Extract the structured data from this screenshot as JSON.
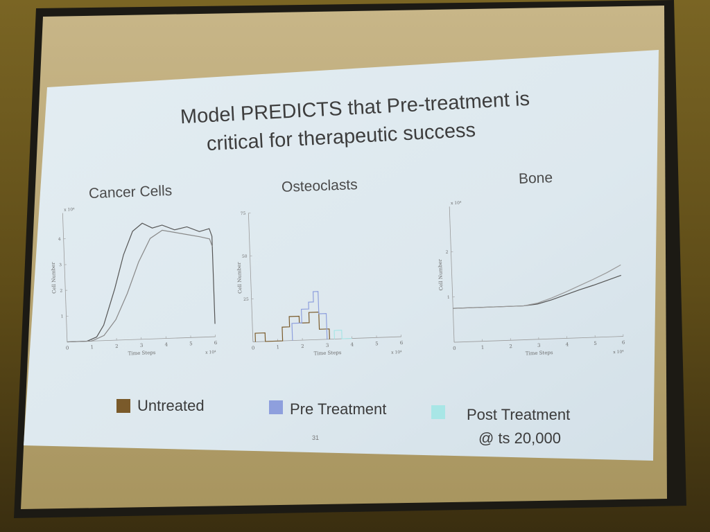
{
  "slide": {
    "title_line1": "Model PREDICTS that Pre-treatment is",
    "title_line2": "critical for therapeutic success",
    "page_number": "31"
  },
  "legend": {
    "untreated": "Untreated",
    "pre_treatment": "Pre Treatment",
    "post_treatment_line1": "Post Treatment",
    "post_treatment_line2": "@ ts 20,000"
  },
  "colors": {
    "untreated": "#7a5a2a",
    "pre_treatment": "#8e9fdd",
    "post_treatment": "#a8e6e6",
    "slide_bg": "#dfeaf0",
    "curve": "#555555"
  },
  "chart_data": [
    {
      "type": "line",
      "title": "Cancer Cells",
      "xlabel": "Time Steps",
      "ylabel": "Cell Number",
      "x_ticks": [
        "0",
        "1",
        "2",
        "3",
        "4",
        "5",
        "6"
      ],
      "y_ticks": [
        "1",
        "2",
        "3",
        "4"
      ],
      "x_multiplier": "x 10⁴",
      "y_multiplier": "x 10⁴",
      "xlim": [
        0,
        6
      ],
      "ylim": [
        0,
        5
      ],
      "grid": false,
      "series": [
        {
          "color": "#555555",
          "x": [
            0,
            0.8,
            1.2,
            1.5,
            2.0,
            2.4,
            2.8,
            3.2,
            3.6,
            4.0,
            4.5,
            5.0,
            5.5,
            5.9,
            6.0,
            6.0
          ],
          "y": [
            0,
            0,
            0.15,
            0.6,
            2.0,
            3.3,
            4.2,
            4.5,
            4.3,
            4.4,
            4.2,
            4.3,
            4.1,
            4.2,
            3.9,
            0.5
          ]
        },
        {
          "color": "#888888",
          "x": [
            0,
            1.0,
            1.5,
            2.0,
            2.5,
            3.0,
            3.5,
            4.0,
            4.5,
            5.0,
            5.5,
            5.9,
            6.0
          ],
          "y": [
            0,
            0,
            0.2,
            0.8,
            1.8,
            3.0,
            3.9,
            4.2,
            4.1,
            4.0,
            3.9,
            3.8,
            3.5
          ]
        }
      ]
    },
    {
      "type": "line",
      "title": "Osteoclasts",
      "xlabel": "Time Steps",
      "ylabel": "Cell Number",
      "x_ticks": [
        "0",
        "1",
        "2",
        "3",
        "4",
        "5",
        "6"
      ],
      "y_ticks": [
        "25",
        "50",
        "75"
      ],
      "x_multiplier": "x 10⁴",
      "xlim": [
        0,
        6
      ],
      "ylim": [
        0,
        75
      ],
      "grid": false,
      "series": [
        {
          "color": "#7a5a2a",
          "x": [
            0.1,
            0.1,
            0.5,
            0.5,
            1.2,
            1.2,
            1.5,
            1.5,
            1.9,
            1.9,
            2.3,
            2.3,
            2.7,
            2.7,
            3.1,
            3.1
          ],
          "y": [
            0,
            5,
            5,
            0,
            0,
            8,
            8,
            14,
            14,
            10,
            10,
            16,
            16,
            6,
            6,
            0
          ]
        },
        {
          "color": "#8e9fdd",
          "x": [
            1.6,
            1.6,
            2.0,
            2.0,
            2.3,
            2.3,
            2.5,
            2.5,
            2.7,
            2.7,
            3.0,
            3.0
          ],
          "y": [
            0,
            10,
            10,
            18,
            18,
            22,
            22,
            28,
            28,
            15,
            15,
            0
          ]
        },
        {
          "color": "#a8e6e6",
          "x": [
            3.3,
            3.3,
            3.6,
            3.6,
            4.0,
            4.0
          ],
          "y": [
            0,
            5,
            5,
            0,
            0,
            0
          ]
        }
      ]
    },
    {
      "type": "line",
      "title": "Bone",
      "xlabel": "Time Steps",
      "ylabel": "Cell Number",
      "x_ticks": [
        "0",
        "1",
        "2",
        "3",
        "4",
        "5",
        "6"
      ],
      "y_ticks": [
        "1",
        "2"
      ],
      "x_multiplier": "x 10⁴",
      "y_multiplier": "x 10⁴",
      "xlim": [
        0,
        6
      ],
      "ylim": [
        0,
        3
      ],
      "grid": false,
      "series": [
        {
          "color": "#555555",
          "x": [
            0,
            2.5,
            3.0,
            3.5,
            4.0,
            4.5,
            5.0,
            5.5,
            6.0
          ],
          "y": [
            0.75,
            0.75,
            0.78,
            0.86,
            0.96,
            1.06,
            1.15,
            1.25,
            1.35
          ]
        },
        {
          "color": "#999999",
          "x": [
            0,
            2.5,
            3.0,
            3.5,
            4.0,
            4.5,
            5.0,
            5.5,
            6.0
          ],
          "y": [
            0.75,
            0.75,
            0.8,
            0.9,
            1.02,
            1.15,
            1.28,
            1.42,
            1.58
          ]
        }
      ]
    }
  ]
}
